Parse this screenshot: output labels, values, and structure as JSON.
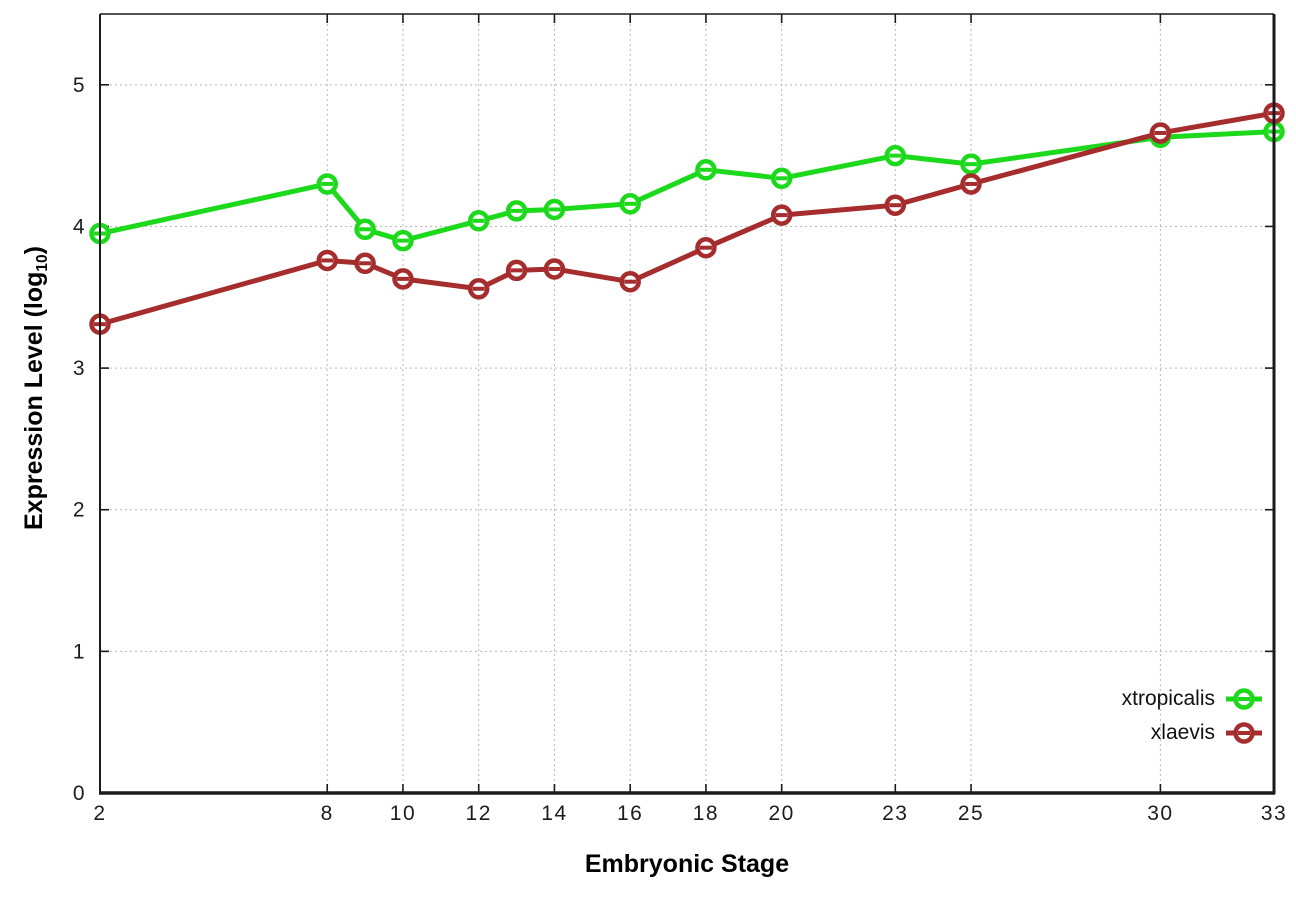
{
  "chart_data": {
    "type": "line",
    "title": "",
    "xlabel": "Embryonic Stage",
    "ylabel_main": "Expression Level (log",
    "ylabel_sub": "10",
    "ylabel_close": ")",
    "x": [
      2,
      8,
      9,
      10,
      12,
      13,
      14,
      16,
      18,
      20,
      23,
      25,
      30,
      33
    ],
    "series": [
      {
        "name": "xtropicalis",
        "color": "#1cd91c",
        "values": [
          3.95,
          4.3,
          3.98,
          3.9,
          4.04,
          4.11,
          4.12,
          4.16,
          4.4,
          4.34,
          4.5,
          4.44,
          4.63,
          4.67
        ]
      },
      {
        "name": "xlaevis",
        "color": "#a52d2d",
        "values": [
          3.31,
          3.76,
          3.74,
          3.63,
          3.56,
          3.69,
          3.7,
          3.61,
          3.85,
          4.08,
          4.15,
          4.3,
          4.66,
          4.8
        ]
      }
    ],
    "xticks": [
      2,
      8,
      10,
      12,
      14,
      16,
      18,
      20,
      23,
      25,
      30,
      33
    ],
    "yticks": [
      0,
      1,
      2,
      3,
      4,
      5
    ],
    "xlim": [
      2,
      33
    ],
    "ylim": [
      0,
      5.5
    ],
    "grid": true,
    "legend_position": "inside-bottom-right",
    "colors": {
      "grid": "#b8b8b8",
      "border": "#1a1a1a",
      "tick_label": "#1c1c1c",
      "background": "#ffffff"
    }
  }
}
